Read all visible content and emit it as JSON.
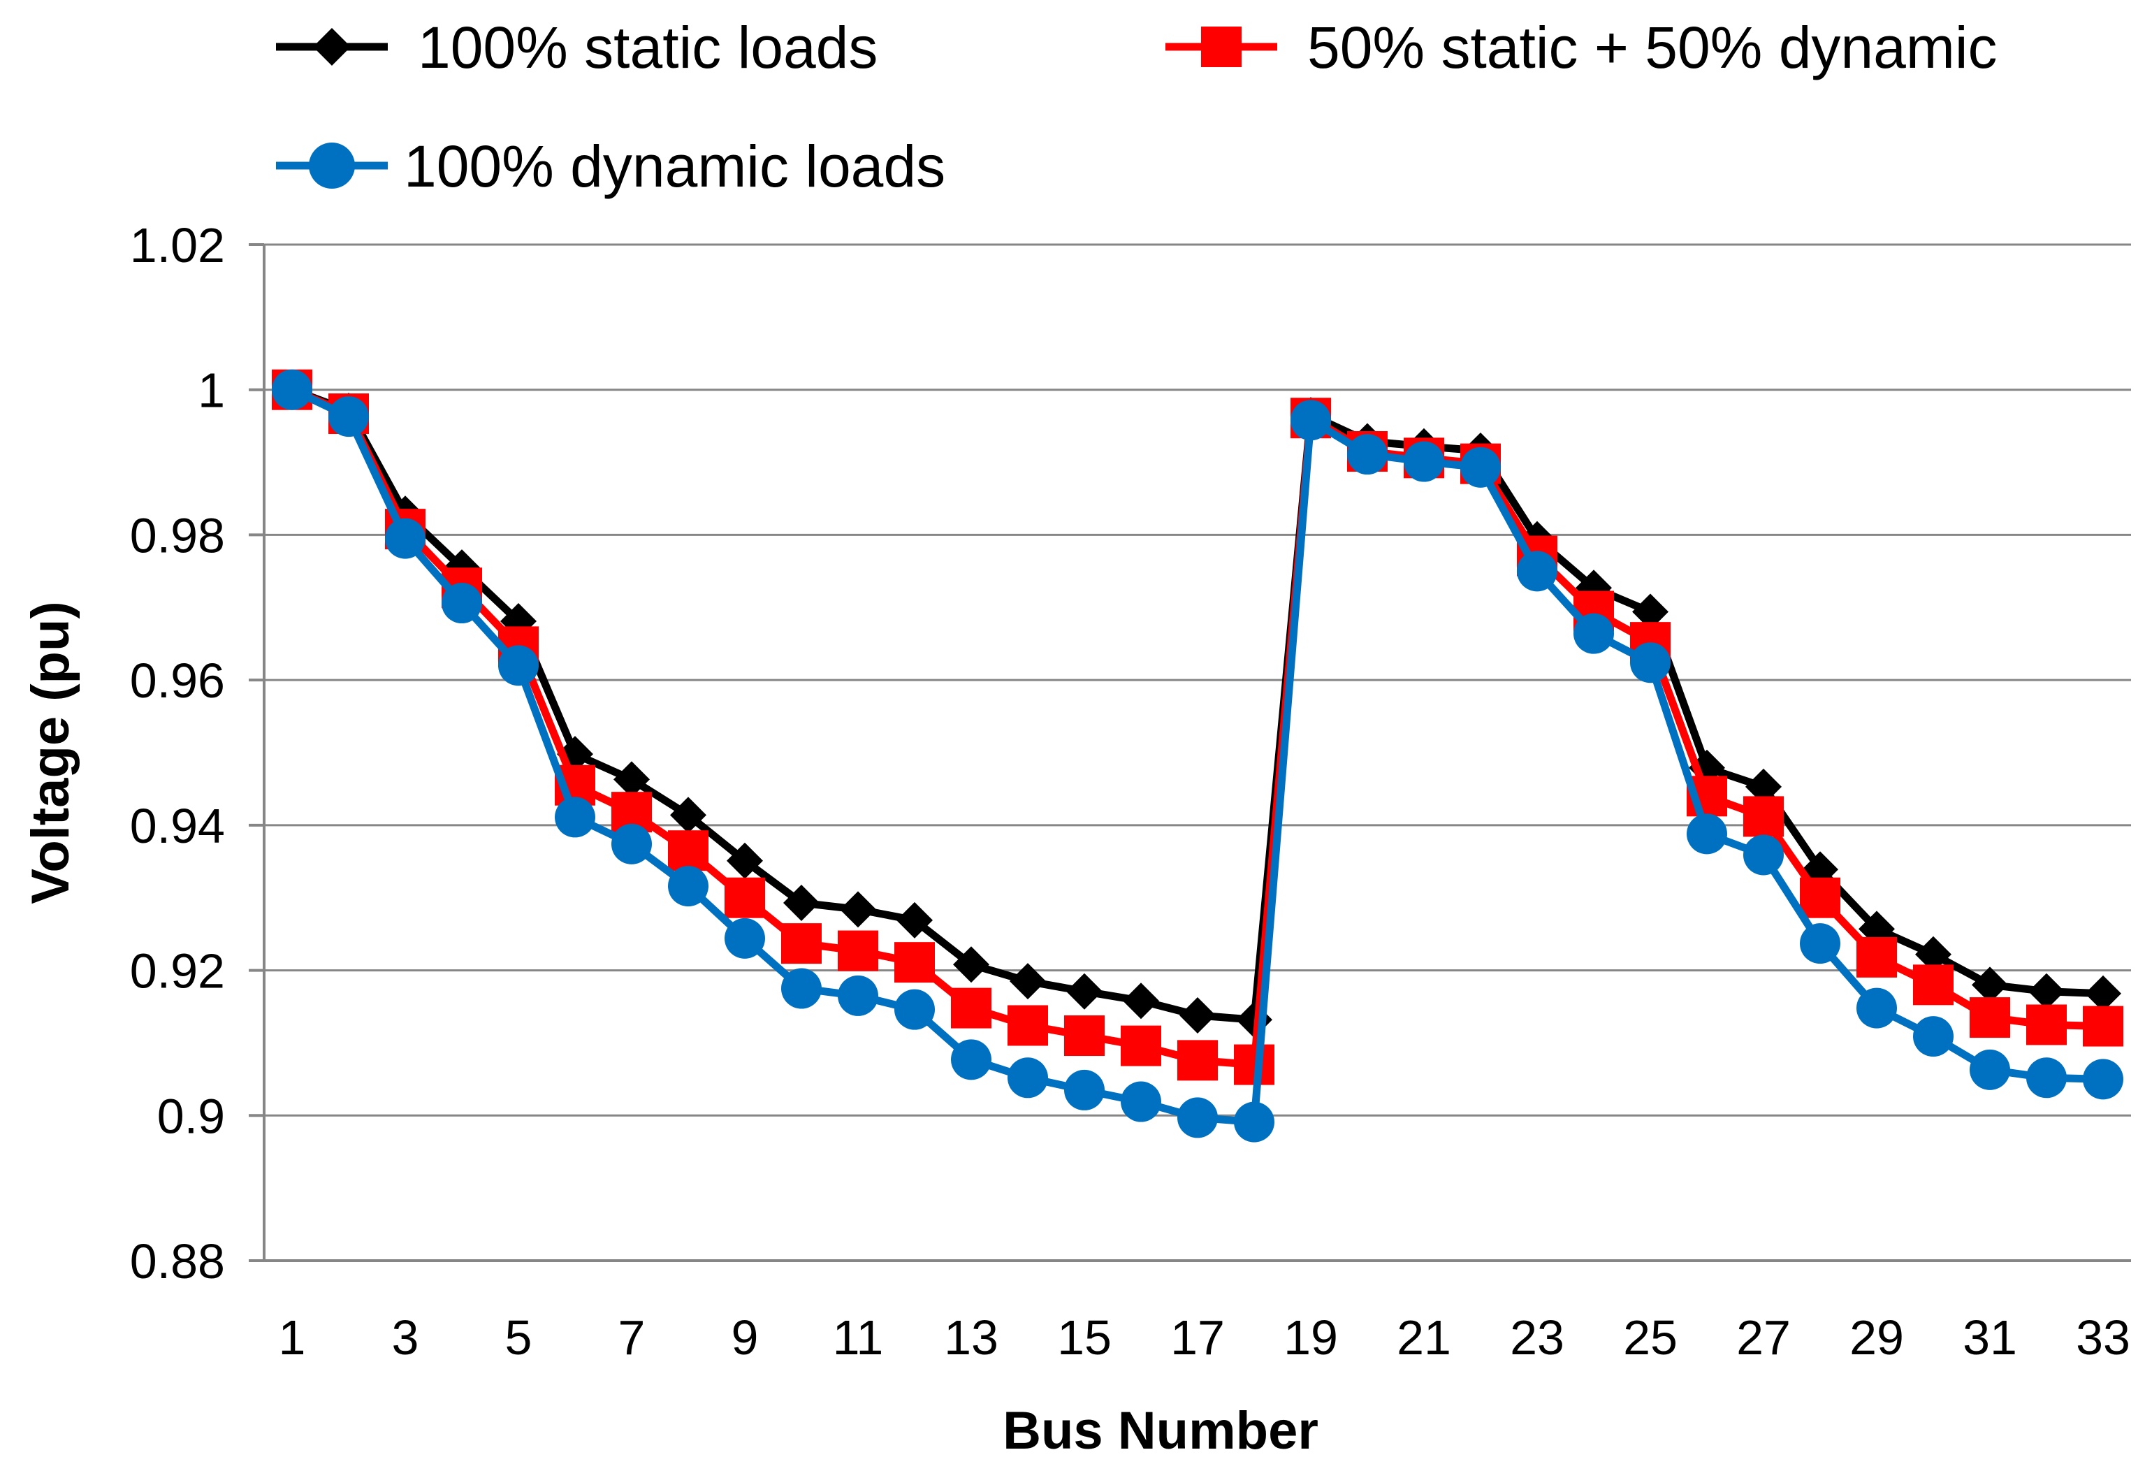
{
  "chart_data": {
    "type": "line",
    "xlabel": "Bus Number",
    "ylabel": "Voltage (pu)",
    "ylim": [
      0.88,
      1.02
    ],
    "yticks": [
      "0.88",
      "0.9",
      "0.92",
      "0.94",
      "0.96",
      "0.98",
      "1",
      "1.02"
    ],
    "x": [
      1,
      2,
      3,
      4,
      5,
      6,
      7,
      8,
      9,
      10,
      11,
      12,
      13,
      14,
      15,
      16,
      17,
      18,
      19,
      20,
      21,
      22,
      23,
      24,
      25,
      26,
      27,
      28,
      29,
      30,
      31,
      32,
      33
    ],
    "xticks": [
      "1",
      "3",
      "5",
      "7",
      "9",
      "11",
      "13",
      "15",
      "17",
      "19",
      "21",
      "23",
      "25",
      "27",
      "29",
      "31",
      "33"
    ],
    "grid": "horizontal",
    "legend_position": "top",
    "series": [
      {
        "name": "100% static loads",
        "color": "#000000",
        "marker": "diamond",
        "values": [
          1.0,
          0.9971,
          0.9829,
          0.9755,
          0.9681,
          0.9498,
          0.9463,
          0.9414,
          0.9351,
          0.9293,
          0.9284,
          0.9269,
          0.9208,
          0.9185,
          0.9171,
          0.9158,
          0.9138,
          0.9132,
          0.9965,
          0.9929,
          0.9922,
          0.9916,
          0.9794,
          0.9727,
          0.9694,
          0.9479,
          0.9453,
          0.9339,
          0.9257,
          0.9222,
          0.918,
          0.9171,
          0.9168
        ]
      },
      {
        "name": "50% static + 50% dynamic",
        "color": "#ff0000",
        "marker": "square",
        "values": [
          1.0,
          0.9967,
          0.9808,
          0.9727,
          0.9646,
          0.9455,
          0.9418,
          0.9365,
          0.93,
          0.9237,
          0.9227,
          0.9211,
          0.9148,
          0.9124,
          0.911,
          0.9096,
          0.9076,
          0.907,
          0.9961,
          0.9915,
          0.9906,
          0.9898,
          0.9771,
          0.9695,
          0.9652,
          0.944,
          0.9412,
          0.93,
          0.9218,
          0.918,
          0.9135,
          0.9125,
          0.9123
        ]
      },
      {
        "name": "100% dynamic loads",
        "color": "#0070c0",
        "marker": "circle",
        "values": [
          1.0,
          0.9963,
          0.9795,
          0.9706,
          0.962,
          0.9411,
          0.9374,
          0.9316,
          0.9244,
          0.9175,
          0.9165,
          0.9146,
          0.9077,
          0.9052,
          0.9035,
          0.9019,
          0.8997,
          0.8991,
          0.9958,
          0.9911,
          0.9901,
          0.9893,
          0.975,
          0.9664,
          0.9624,
          0.9388,
          0.9359,
          0.9237,
          0.9148,
          0.9109,
          0.9063,
          0.9052,
          0.905
        ]
      }
    ]
  }
}
